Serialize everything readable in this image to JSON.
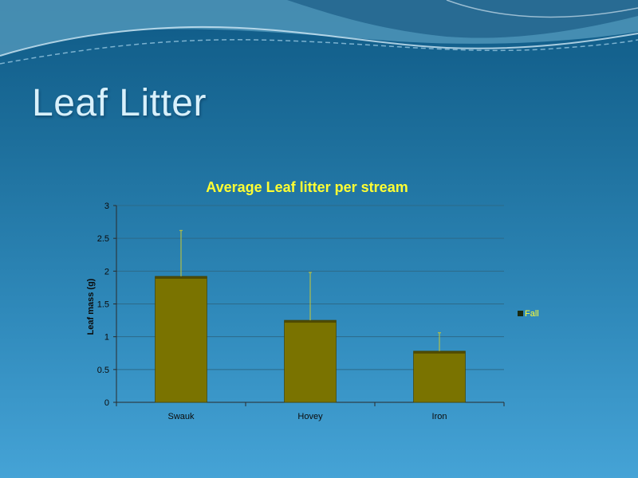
{
  "slide": {
    "title": "Leaf Litter"
  },
  "colors": {
    "bar": "#7a7300",
    "error_bar": "#c8c832",
    "grid": "#2d6a88",
    "title": "#ffff33"
  },
  "chart_data": {
    "type": "bar",
    "title": "Average Leaf litter per stream",
    "xlabel": "",
    "ylabel": "Leaf mass (g)",
    "categories": [
      "Swauk",
      "Hovey",
      "Iron"
    ],
    "series": [
      {
        "name": "Fall",
        "values": [
          1.92,
          1.25,
          0.78
        ],
        "error_upper": [
          2.62,
          1.98,
          1.06
        ]
      }
    ],
    "ylim": [
      0,
      3
    ],
    "yticks": [
      "0",
      "0.5",
      "1",
      "1.5",
      "2",
      "2.5",
      "3"
    ],
    "grid": true,
    "legend_position": "right"
  }
}
